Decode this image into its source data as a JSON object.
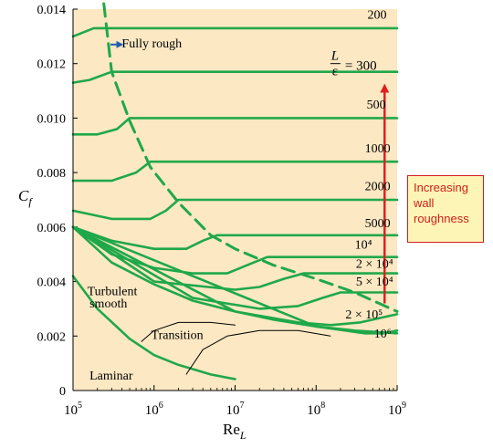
{
  "chart_data": {
    "type": "line",
    "title": "",
    "xscale": "log",
    "xlim": [
      100000,
      1000000000
    ],
    "ylim": [
      0,
      0.014
    ],
    "y_ticks": [
      "0",
      "0.002",
      "0.004",
      "0.006",
      "0.008",
      "0.010",
      "0.012",
      "0.014"
    ],
    "x_tick_labels": [
      {
        "base": "10",
        "exp": "5"
      },
      {
        "base": "10",
        "exp": "6"
      },
      {
        "base": "10",
        "exp": "7"
      },
      {
        "base": "10",
        "exp": "8"
      },
      {
        "base": "10",
        "exp": "9"
      }
    ],
    "ylabel": {
      "base": "C",
      "sub": "f"
    },
    "xlabel": {
      "base": "Re",
      "sub": "L"
    },
    "colors": {
      "plot_bg": "#fce8c3",
      "curve": "#1fa84a",
      "transition": "#000000",
      "arrow": "#e02020",
      "fully_rough_arrow": "#1f5fb4",
      "callout_text": "#d02020",
      "callout_bg": "#fdf5b5"
    },
    "series": [
      {
        "name": "Laminar",
        "kind": "laminar",
        "points": [
          [
            100000,
            0.0042
          ],
          [
            200000,
            0.003
          ],
          [
            500000,
            0.0019
          ],
          [
            1000000,
            0.0013
          ],
          [
            2000000,
            0.00094
          ],
          [
            5000000,
            0.00059
          ],
          [
            10000000,
            0.00042
          ]
        ]
      },
      {
        "name": "Turbulent smooth",
        "kind": "smooth",
        "points": [
          [
            100000,
            0.006
          ],
          [
            300000,
            0.0047
          ],
          [
            1000000,
            0.0039
          ],
          [
            3000000,
            0.0033
          ],
          [
            10000000,
            0.0029
          ],
          [
            30000000,
            0.0026
          ],
          [
            100000000,
            0.00235
          ],
          [
            300000000,
            0.0022
          ],
          [
            1000000000,
            0.0021
          ]
        ]
      },
      {
        "name": "Fully rough",
        "kind": "boundary",
        "points": [
          [
            240000,
            0.0142
          ],
          [
            300000,
            0.0117
          ],
          [
            500000,
            0.0099
          ],
          [
            900000,
            0.0082
          ],
          [
            2000000,
            0.0069
          ],
          [
            5000000,
            0.0057
          ],
          [
            10000000,
            0.0052
          ],
          [
            30000000,
            0.0046
          ],
          [
            100000000,
            0.0041
          ],
          [
            300000000,
            0.0036
          ],
          [
            1000000000,
            0.0029
          ]
        ]
      },
      {
        "name": "200",
        "kind": "rough",
        "points": [
          [
            100000,
            0.013
          ],
          [
            180000,
            0.0133
          ],
          [
            1000000000,
            0.0133
          ]
        ]
      },
      {
        "name": "L/ε = 300",
        "kind": "rough",
        "points": [
          [
            100000,
            0.0113
          ],
          [
            160000,
            0.0114
          ],
          [
            300000,
            0.0117
          ],
          [
            1000000000,
            0.0117
          ]
        ]
      },
      {
        "name": "500",
        "kind": "rough",
        "points": [
          [
            100000,
            0.0094
          ],
          [
            200000,
            0.0094
          ],
          [
            350000,
            0.0096
          ],
          [
            500000,
            0.01
          ],
          [
            1000000000,
            0.01
          ]
        ]
      },
      {
        "name": "1000",
        "kind": "rough",
        "points": [
          [
            100000,
            0.0077
          ],
          [
            300000,
            0.0077
          ],
          [
            600000,
            0.008
          ],
          [
            900000,
            0.0084
          ],
          [
            1000000000,
            0.0084
          ]
        ]
      },
      {
        "name": "2000",
        "kind": "rough",
        "points": [
          [
            100000,
            0.0066
          ],
          [
            300000,
            0.0063
          ],
          [
            900000,
            0.0063
          ],
          [
            1400000,
            0.0066
          ],
          [
            2000000,
            0.007
          ],
          [
            1000000000,
            0.007
          ]
        ]
      },
      {
        "name": "5000",
        "kind": "rough",
        "points": [
          [
            100000,
            0.006
          ],
          [
            300000,
            0.0055
          ],
          [
            1000000,
            0.0052
          ],
          [
            2500000,
            0.0052
          ],
          [
            4000000,
            0.0055
          ],
          [
            6000000,
            0.0057
          ],
          [
            1000000000,
            0.0057
          ]
        ]
      },
      {
        "name": "10⁴",
        "kind": "rough",
        "points": [
          [
            100000,
            0.006
          ],
          [
            300000,
            0.005
          ],
          [
            1000000,
            0.0045
          ],
          [
            3000000,
            0.0043
          ],
          [
            8000000,
            0.0043
          ],
          [
            14000000,
            0.0046
          ],
          [
            25000000,
            0.0049
          ],
          [
            1000000000,
            0.0049
          ]
        ]
      },
      {
        "name": "2 × 10⁴",
        "kind": "rough",
        "points": [
          [
            100000,
            0.006
          ],
          [
            1000000,
            0.004
          ],
          [
            10000000,
            0.0037
          ],
          [
            20000000,
            0.0038
          ],
          [
            40000000,
            0.0041
          ],
          [
            70000000,
            0.0043
          ],
          [
            1000000000,
            0.0043
          ]
        ]
      },
      {
        "name": "5 × 10⁴",
        "kind": "rough",
        "points": [
          [
            100000,
            0.006
          ],
          [
            3000000,
            0.0034
          ],
          [
            20000000,
            0.003
          ],
          [
            60000000,
            0.0031
          ],
          [
            120000000,
            0.0034
          ],
          [
            200000000,
            0.0036
          ],
          [
            1000000000,
            0.0036
          ]
        ]
      },
      {
        "name": "2 × 10⁵",
        "kind": "rough",
        "points": [
          [
            100000,
            0.006
          ],
          [
            10000000,
            0.0029
          ],
          [
            60000000,
            0.0025
          ],
          [
            150000000,
            0.0024
          ],
          [
            350000000,
            0.0025
          ],
          [
            700000000,
            0.0027
          ],
          [
            1000000000,
            0.0028
          ]
        ]
      },
      {
        "name": "10⁶",
        "kind": "rough",
        "points": [
          [
            100000,
            0.006
          ],
          [
            100000000,
            0.00235
          ],
          [
            400000000,
            0.0021
          ],
          [
            700000000,
            0.0021
          ],
          [
            1000000000,
            0.0022
          ]
        ]
      },
      {
        "name": "Transition",
        "kind": "transition",
        "points": [
          [
            700000,
            0.0018
          ],
          [
            1000000,
            0.0022
          ],
          [
            2000000,
            0.0025
          ],
          [
            5000000,
            0.0025
          ],
          [
            10000000,
            0.0024
          ]
        ]
      },
      {
        "name": "Transition",
        "kind": "transition",
        "points": [
          [
            2500000,
            0.0006
          ],
          [
            4000000,
            0.0015
          ],
          [
            8000000,
            0.002
          ],
          [
            20000000,
            0.0022
          ],
          [
            60000000,
            0.0022
          ],
          [
            150000000,
            0.002
          ]
        ]
      }
    ],
    "annotations": [
      {
        "kind": "text",
        "text": "Fully rough",
        "x": 400000,
        "y": 0.0126
      },
      {
        "kind": "text",
        "text": "Turbulent",
        "x": 150000,
        "y": 0.0035
      },
      {
        "kind": "text",
        "text": "smooth",
        "x": 160000,
        "y": 0.00305
      },
      {
        "kind": "text",
        "text": "Transition",
        "x": 920000,
        "y": 0.0019
      },
      {
        "kind": "text",
        "text": "Laminar",
        "x": 160000,
        "y": 0.0004
      },
      {
        "kind": "text",
        "text": "200",
        "x": 430000000,
        "y": 0.01365
      },
      {
        "kind": "text",
        "text": "500",
        "x": 420000000,
        "y": 0.01035
      },
      {
        "kind": "text",
        "text": "1000",
        "x": 400000000,
        "y": 0.00875
      },
      {
        "kind": "text",
        "text": "2000",
        "x": 400000000,
        "y": 0.00735
      },
      {
        "kind": "text",
        "text": "5000",
        "x": 400000000,
        "y": 0.006
      },
      {
        "kind": "text",
        "text": "10⁴",
        "x": 300000000,
        "y": 0.0052
      },
      {
        "kind": "text",
        "text": "2 × 10⁴",
        "x": 310000000,
        "y": 0.0045
      },
      {
        "kind": "text",
        "text": "5 × 10⁴",
        "x": 310000000,
        "y": 0.00385
      },
      {
        "kind": "text",
        "text": "2 × 10⁵",
        "x": 230000000,
        "y": 0.00265
      },
      {
        "kind": "text",
        "text": "10⁶",
        "x": 520000000,
        "y": 0.00195
      }
    ],
    "ratio_label": {
      "numerator": "L",
      "denominator": "ε",
      "value": "= 300",
      "x": 150000000,
      "y": 0.0118
    },
    "arrow": {
      "x": 700000000,
      "y_start": 0.0032,
      "y_end": 0.0111
    },
    "fully_rough_arrow": {
      "x_start": 290000,
      "x_end": 380000,
      "y": 0.0127
    },
    "callout": {
      "text": "Increasing\nwall\nroughness"
    }
  }
}
